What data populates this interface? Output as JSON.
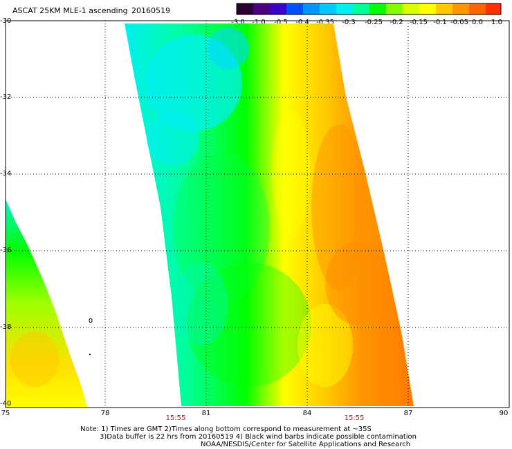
{
  "header": {
    "title": "ASCAT 25KM MLE-1 ascending",
    "date": "20160519"
  },
  "colorbar": {
    "labels": [
      "-3.0",
      "-1.0",
      "-0.5",
      "-0.4",
      "-0.35",
      "-0.3",
      "-0.25",
      "-0.2",
      "-0.15",
      "-0.1",
      "-0.05",
      "0.0",
      "1.0"
    ],
    "colors": [
      "#2a0030",
      "#4b0082",
      "#3a00c8",
      "#0050ff",
      "#0096ff",
      "#00c8ff",
      "#00f0f0",
      "#00ff96",
      "#00ff00",
      "#80ff00",
      "#d8ff00",
      "#ffff00",
      "#ffc800",
      "#ff9600",
      "#ff6400",
      "#ff3000"
    ]
  },
  "axes": {
    "x_ticks": [
      "75",
      "78",
      "81",
      "84",
      "87",
      "90"
    ],
    "y_ticks": [
      "-30",
      "-32",
      "-34",
      "-36",
      "-38",
      "-40"
    ],
    "time_labels": [
      "15:55",
      "15:55"
    ]
  },
  "notes": {
    "line1": "Note: 1) Times are GMT 2)Times along bottom correspond to measurement at ~35S",
    "line2": "3)Data buffer is 22 hrs from 20160519 4) Black wind barbs indicate possible contamination",
    "line3": "NOAA/NESDIS/Center for Satellite Applications and Research"
  }
}
